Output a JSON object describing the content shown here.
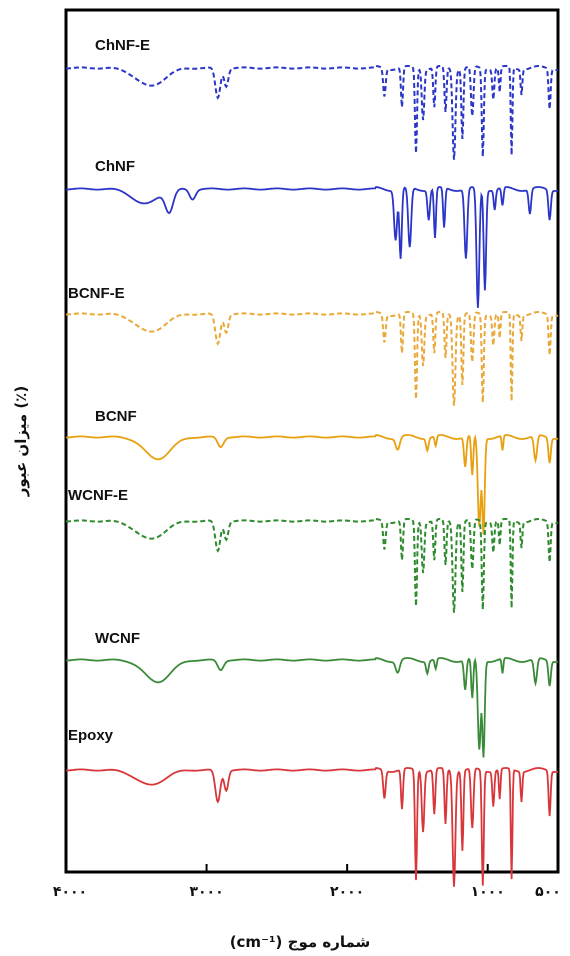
{
  "chart_data": {
    "type": "line",
    "title": "",
    "xlabel": "(cm⁻¹) شماره موج",
    "ylabel": "میزان عبور (٪)",
    "xlim": [
      4000,
      500
    ],
    "x_reversed": true,
    "tick_values": [
      4000,
      3000,
      2000,
      1000,
      500
    ],
    "tick_labels": [
      "۴۰۰۰",
      "۳۰۰۰",
      "۲۰۰۰",
      "۱۰۰۰",
      "۵۰۰"
    ],
    "y_ticks_shown": false,
    "grid": false,
    "legend": "none (series labelled directly above each curve)",
    "series": [
      {
        "name": "ChNF-E",
        "color": "#2b35c8",
        "style": "dashed"
      },
      {
        "name": "ChNF",
        "color": "#2b35c8",
        "style": "solid"
      },
      {
        "name": "BCNF-E",
        "color": "#e8a93a",
        "style": "dashed"
      },
      {
        "name": "BCNF",
        "color": "#e8a010",
        "style": "solid"
      },
      {
        "name": "WCNF-E",
        "color": "#2e8b2e",
        "style": "dashed"
      },
      {
        "name": "WCNF",
        "color": "#3a8a3a",
        "style": "solid"
      },
      {
        "name": "Epoxy",
        "color": "#d8363a",
        "style": "solid"
      }
    ]
  }
}
